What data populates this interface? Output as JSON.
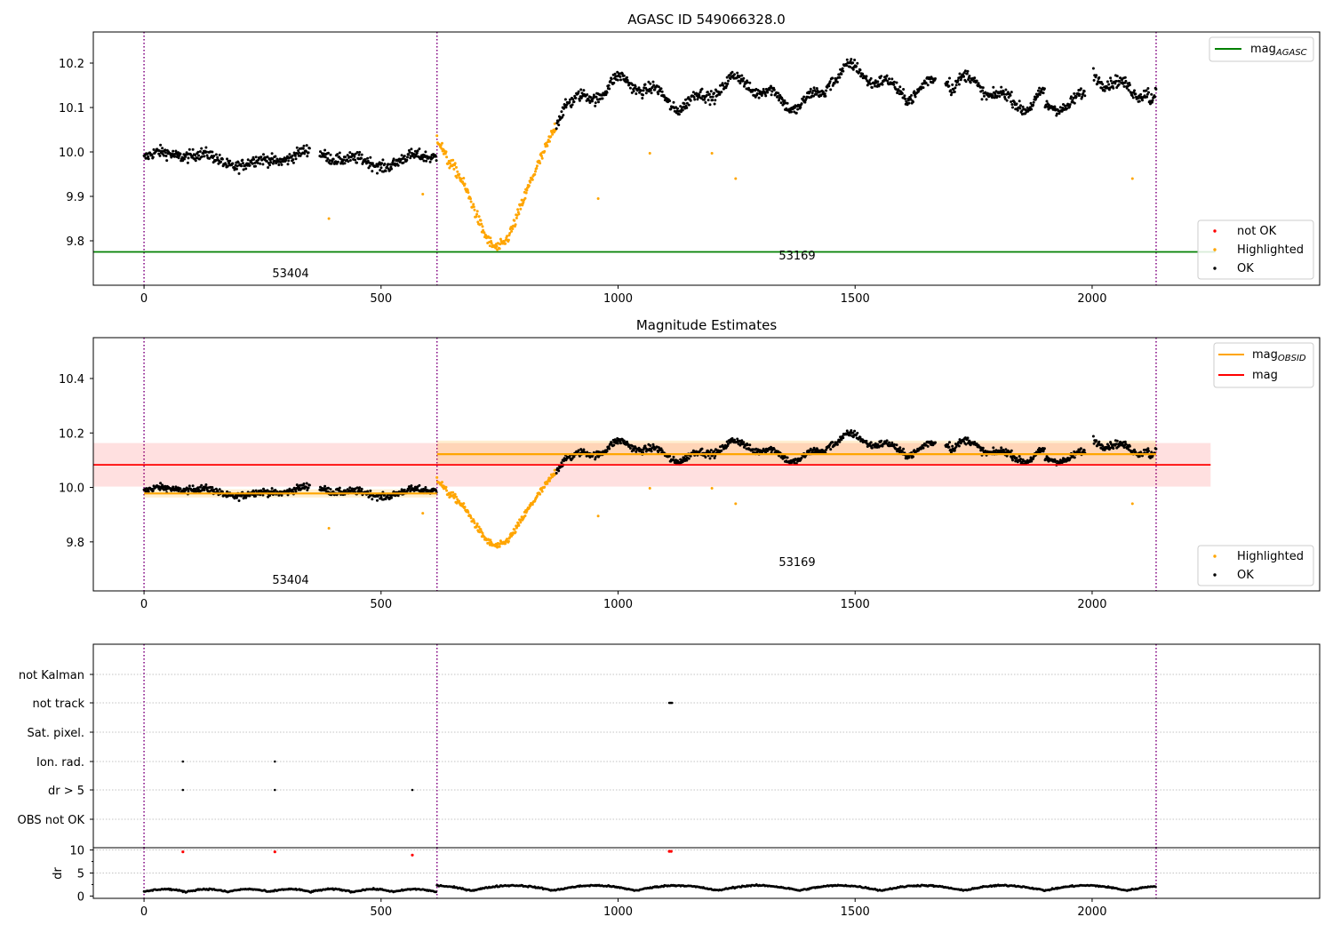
{
  "chart_data": [
    {
      "type": "scatter",
      "title": "AGASC ID 549066328.0",
      "xlim": [
        -107,
        2480
      ],
      "ylim": [
        9.7,
        10.27
      ],
      "yticks": [
        "9.8",
        "9.9",
        "10.0",
        "10.1",
        "10.2"
      ],
      "ytick_values": [
        9.8,
        9.9,
        10.0,
        10.1,
        10.2
      ],
      "xticks": [
        "0",
        "500",
        "1000",
        "1500",
        "2000"
      ],
      "xtick_values": [
        0,
        500,
        1000,
        1500,
        2000
      ],
      "vlines": [
        0,
        618,
        2135
      ],
      "hline": {
        "name": "mag",
        "sub": "AGASC",
        "value": 9.775,
        "x": [
          -107,
          2260
        ],
        "color": "#008000"
      },
      "obsids": [
        {
          "label": "53404",
          "x": 309,
          "y": 9.73
        },
        {
          "label": "53169",
          "x": 1338,
          "y": 9.77
        }
      ],
      "legend_top": {
        "entries": [
          {
            "name": "mag",
            "sub": "AGASC",
            "color": "#008000"
          }
        ],
        "position": "upper-right"
      },
      "legend": {
        "entries": [
          {
            "name": "not OK",
            "color": "#ff0000"
          },
          {
            "name": "Highlighted",
            "color": "#ffa500"
          },
          {
            "name": "OK",
            "color": "#000000"
          }
        ],
        "position": "lower-right"
      },
      "outliers": [
        [
          390,
          9.85
        ],
        [
          588,
          9.905
        ],
        [
          958,
          9.895
        ],
        [
          1067,
          9.997
        ],
        [
          1198,
          9.997
        ],
        [
          1248,
          9.94
        ],
        [
          2085,
          9.94
        ]
      ]
    },
    {
      "type": "scatter",
      "title": "Magnitude Estimates",
      "xlim": [
        -107,
        2480
      ],
      "ylim": [
        9.62,
        10.55
      ],
      "yticks": [
        "9.8",
        "10.0",
        "10.2",
        "10.4"
      ],
      "ytick_values": [
        9.8,
        10.0,
        10.2,
        10.4
      ],
      "xticks": [
        "0",
        "500",
        "1000",
        "1500",
        "2000"
      ],
      "xtick_values": [
        0,
        500,
        1000,
        1500,
        2000
      ],
      "vlines": [
        0,
        618,
        2135
      ],
      "mag": {
        "name": "mag",
        "value": 10.083,
        "band": [
          10.003,
          10.163
        ],
        "x": [
          -107,
          2250
        ],
        "color": "#ff0000"
      },
      "mag_obsid": [
        {
          "x": [
            0,
            618
          ],
          "value": 9.978,
          "band": [
            9.963,
            9.993
          ]
        },
        {
          "x": [
            618,
            2135
          ],
          "value": 10.122,
          "band": [
            10.087,
            10.172
          ]
        }
      ],
      "obsids": [
        {
          "label": "53404",
          "x": 309,
          "y": 9.66
        },
        {
          "label": "53169",
          "x": 1338,
          "y": 9.72
        }
      ],
      "legend_top": {
        "entries": [
          {
            "name": "mag",
            "sub": "OBSID",
            "color": "#ffa500"
          },
          {
            "name": "mag",
            "sub": "",
            "color": "#ff0000"
          }
        ],
        "position": "upper-right"
      },
      "legend": {
        "entries": [
          {
            "name": "Highlighted",
            "color": "#ffa500"
          },
          {
            "name": "OK",
            "color": "#000000"
          }
        ],
        "position": "lower-right"
      }
    },
    {
      "type": "scatter",
      "title": "",
      "xlim": [
        -107,
        2480
      ],
      "categories": [
        "not Kalman",
        "not track",
        "Sat. pixel.",
        "Ion. rad.",
        "dr > 5",
        "OBS not OK"
      ],
      "flags": {
        "not track": [
          1108,
          1110,
          1112,
          1114
        ],
        "Ion. rad.": [
          82,
          276
        ],
        "dr > 5": [
          82,
          276,
          566
        ]
      },
      "vlines": [
        0,
        618,
        2135
      ]
    },
    {
      "type": "scatter",
      "title": "",
      "ylabel": "dr",
      "xlim": [
        -107,
        2480
      ],
      "ylim": [
        -0.5,
        10.5
      ],
      "yticks": [
        "0",
        "5",
        "10"
      ],
      "ytick_values": [
        0,
        5,
        10
      ],
      "xticks": [
        "0",
        "500",
        "1000",
        "1500",
        "2000"
      ],
      "xtick_values": [
        0,
        500,
        1000,
        1500,
        2000
      ],
      "vlines": [
        0,
        618,
        2135
      ],
      "red_points": [
        [
          82,
          9.6
        ],
        [
          276,
          9.6
        ],
        [
          566,
          8.9
        ],
        [
          1108,
          9.7
        ],
        [
          1112,
          9.7
        ]
      ]
    }
  ]
}
